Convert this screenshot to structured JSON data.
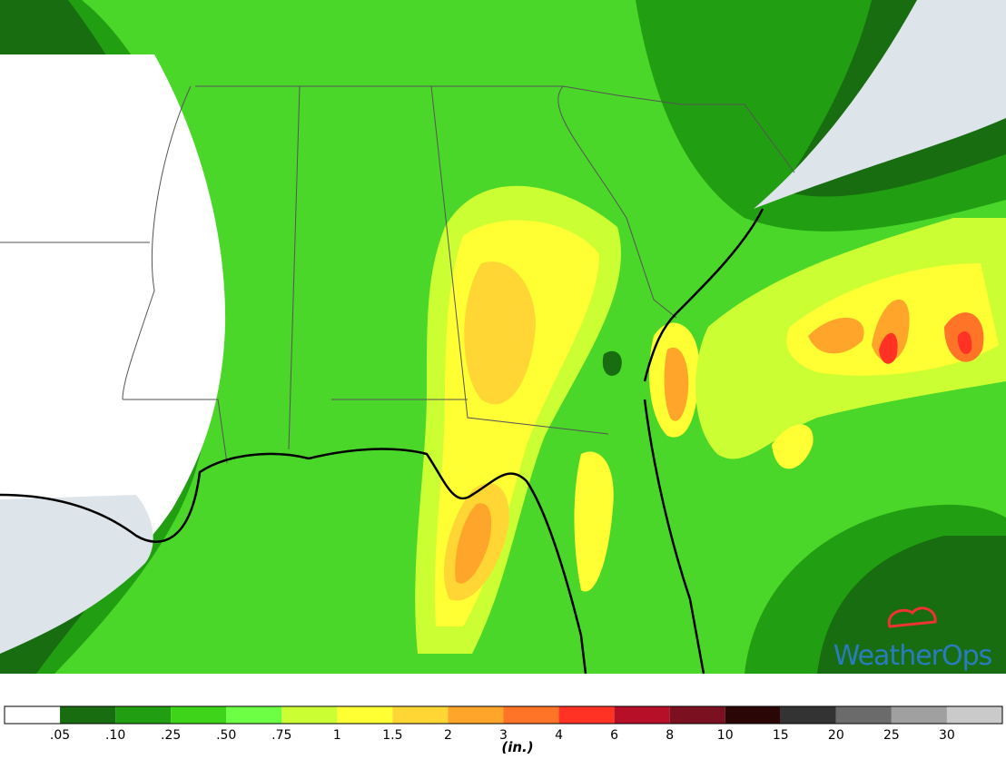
{
  "legend": {
    "colors": [
      "#ffffff",
      "#176d10",
      "#229e12",
      "#3ed41a",
      "#6cff44",
      "#ccff33",
      "#ffff33",
      "#ffd633",
      "#ffa52a",
      "#ff7426",
      "#ff3224",
      "#b80f28",
      "#7a1020",
      "#2b0606",
      "#333333",
      "#6b6b6b",
      "#a0a0a0",
      "#cacaca"
    ],
    "labels": [
      ".05",
      ".10",
      ".25",
      ".50",
      ".75",
      "1",
      "1.5",
      "2",
      "3",
      "4",
      "6",
      "8",
      "10",
      "15",
      "20",
      "25",
      "30"
    ],
    "unit": "(in.)"
  },
  "brand": "WeatherOps"
}
